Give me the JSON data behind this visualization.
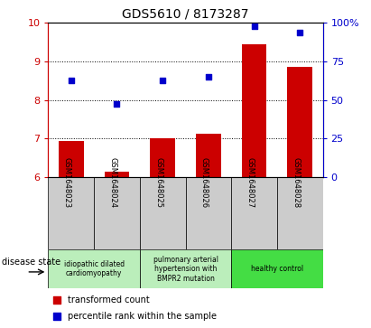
{
  "title": "GDS5610 / 8173287",
  "samples": [
    "GSM1648023",
    "GSM1648024",
    "GSM1648025",
    "GSM1648026",
    "GSM1648027",
    "GSM1648028"
  ],
  "bar_values": [
    6.95,
    6.15,
    7.02,
    7.12,
    9.45,
    8.85
  ],
  "scatter_values": [
    8.5,
    7.9,
    8.5,
    8.6,
    9.92,
    9.75
  ],
  "bar_color": "#cc0000",
  "scatter_color": "#0000cc",
  "ylim_left": [
    6,
    10
  ],
  "ylim_right": [
    0,
    100
  ],
  "yticks_left": [
    6,
    7,
    8,
    9,
    10
  ],
  "yticks_right": [
    0,
    25,
    50,
    75,
    100
  ],
  "ytick_labels_right": [
    "0",
    "25",
    "50",
    "75",
    "100%"
  ],
  "group_info": [
    {
      "start": 0,
      "end": 1,
      "label": "idiopathic dilated\ncardiomyopathy",
      "color": "#bbeebb"
    },
    {
      "start": 2,
      "end": 3,
      "label": "pulmonary arterial\nhypertension with\nBMPR2 mutation",
      "color": "#bbeebb"
    },
    {
      "start": 4,
      "end": 5,
      "label": "healthy control",
      "color": "#44dd44"
    }
  ],
  "legend_bar_label": "transformed count",
  "legend_scatter_label": "percentile rank within the sample",
  "disease_state_label": "disease state",
  "bar_bottom": 6,
  "sample_bg_color": "#cccccc",
  "gridline_ticks": [
    7,
    8,
    9
  ],
  "bar_width": 0.55
}
